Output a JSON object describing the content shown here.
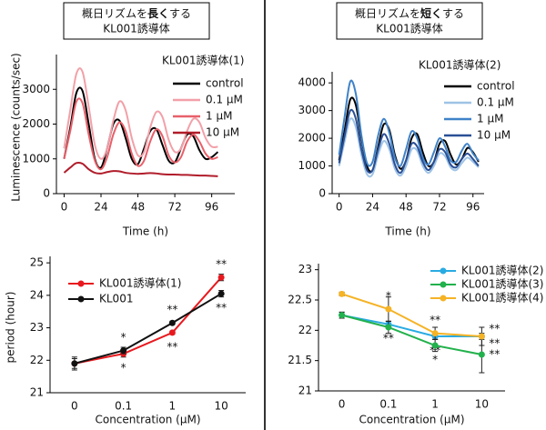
{
  "headers": [
    {
      "line1": [
        "概日リズムを",
        "長く",
        "する"
      ],
      "line2": "KL001誘導体"
    },
    {
      "line1": [
        "概日リズムを",
        "短く",
        "する"
      ],
      "line2": "KL001誘導体"
    }
  ],
  "chart_data": [
    {
      "type": "line",
      "legend_title": "KL001誘導体(1)",
      "xlabel": "Time (h)",
      "ylabel": "Luminescence (counts/sec)",
      "x": [
        0,
        4,
        8,
        12,
        16,
        20,
        24,
        28,
        32,
        36,
        40,
        44,
        48,
        52,
        56,
        60,
        64,
        68,
        72,
        76,
        80,
        84,
        88,
        92,
        96,
        100
      ],
      "xlim": [
        -5,
        111
      ],
      "xticks": [
        0,
        24,
        48,
        72,
        96
      ],
      "ylim": [
        0,
        4000
      ],
      "yticks": [
        0,
        1000,
        2000,
        3000
      ],
      "series": [
        {
          "name": "control",
          "color": "#000000",
          "values": [
            1000,
            1900,
            2900,
            2950,
            2000,
            1000,
            750,
            1300,
            2000,
            2100,
            1600,
            1000,
            850,
            1300,
            1800,
            1850,
            1400,
            950,
            900,
            1300,
            1700,
            1650,
            1250,
            1000,
            1050,
            1200
          ]
        },
        {
          "name": "0.1 μM",
          "color": "#f2a0a8",
          "values": [
            1300,
            2400,
            3450,
            3500,
            2500,
            1400,
            1000,
            1300,
            2100,
            2650,
            2400,
            1600,
            1100,
            1200,
            1900,
            2350,
            2200,
            1550,
            1200,
            1300,
            1800,
            2150,
            2050,
            1600,
            1350,
            1350
          ]
        },
        {
          "name": "1 μM",
          "color": "#e8606a",
          "values": [
            1000,
            1800,
            2650,
            2600,
            1700,
            950,
            700,
            1050,
            1700,
            2050,
            1800,
            1150,
            800,
            950,
            1500,
            1850,
            1650,
            1100,
            900,
            1050,
            1500,
            1700,
            1500,
            1150,
            1000,
            1050
          ]
        },
        {
          "name": "10 μM",
          "color": "#b01c2a",
          "values": [
            600,
            750,
            880,
            860,
            700,
            600,
            580,
            620,
            650,
            640,
            600,
            580,
            570,
            580,
            590,
            580,
            560,
            550,
            550,
            540,
            540,
            530,
            520,
            520,
            510,
            500
          ]
        }
      ]
    },
    {
      "type": "line",
      "legend_title": "KL001誘導体(2)",
      "xlabel": "Time (h)",
      "x": [
        0,
        4,
        8,
        12,
        16,
        20,
        24,
        28,
        32,
        36,
        40,
        44,
        48,
        52,
        56,
        60,
        64,
        68,
        72,
        76,
        80,
        84,
        88,
        92,
        96,
        100
      ],
      "xlim": [
        -5,
        104
      ],
      "xticks": [
        0,
        24,
        48,
        72,
        96
      ],
      "ylim": [
        0,
        4400
      ],
      "yticks": [
        0,
        1000,
        2000,
        3000,
        4000
      ],
      "series": [
        {
          "name": "control",
          "color": "#000000",
          "values": [
            1200,
            2300,
            3400,
            3200,
            2000,
            1000,
            850,
            1700,
            2500,
            2300,
            1400,
            900,
            1200,
            2000,
            2150,
            1500,
            1000,
            1150,
            1800,
            1900,
            1400,
            1050,
            1250,
            1650,
            1500,
            1150
          ]
        },
        {
          "name": "0.1 μM",
          "color": "#9ec3e6",
          "values": [
            1000,
            1900,
            2700,
            2400,
            1400,
            700,
            700,
            1400,
            1900,
            1600,
            900,
            650,
            1000,
            1600,
            1550,
            1000,
            750,
            1000,
            1450,
            1350,
            950,
            850,
            1100,
            1300,
            1150,
            950
          ]
        },
        {
          "name": "1 μM",
          "color": "#3f82c8",
          "values": [
            1400,
            2800,
            4050,
            3600,
            2100,
            1100,
            1150,
            2100,
            2700,
            2200,
            1300,
            1000,
            1600,
            2250,
            2000,
            1300,
            1050,
            1500,
            2000,
            1700,
            1200,
            1150,
            1550,
            1800,
            1450,
            1200
          ]
        },
        {
          "name": "10 μM",
          "color": "#2a4f95",
          "values": [
            1100,
            2100,
            3000,
            2700,
            1600,
            850,
            850,
            1600,
            2150,
            1800,
            1050,
            750,
            1200,
            1800,
            1700,
            1150,
            850,
            1150,
            1600,
            1500,
            1050,
            950,
            1250,
            1450,
            1250,
            1000
          ]
        }
      ]
    },
    {
      "type": "line",
      "xlabel": "Concentration (μM)",
      "ylabel": "period (hour)",
      "categories": [
        "0",
        "0.1",
        "1",
        "10"
      ],
      "ylim": [
        21,
        25.2
      ],
      "yticks": [
        21,
        22,
        23,
        24,
        25
      ],
      "series": [
        {
          "name": "KL001誘導体(1)",
          "color": "#e8191e",
          "values": [
            21.9,
            22.2,
            22.85,
            24.55
          ],
          "errors": [
            0.15,
            0.1,
            0.05,
            0.1
          ],
          "significance": [
            null,
            "*",
            "**",
            "**"
          ]
        },
        {
          "name": "KL001",
          "color": "#111111",
          "values": [
            21.9,
            22.3,
            23.15,
            24.05
          ],
          "errors": [
            0.2,
            0.1,
            0.05,
            0.1
          ],
          "significance": [
            null,
            "*",
            "**",
            "**"
          ]
        }
      ]
    },
    {
      "type": "line",
      "xlabel": "Concentration (μM)",
      "categories": [
        "0",
        "0.1",
        "1",
        "10"
      ],
      "ylim": [
        21,
        23.1
      ],
      "yticks": [
        21,
        21.5,
        22,
        22.5,
        23
      ],
      "series": [
        {
          "name": "KL001誘導体(2)",
          "color": "#29abe2",
          "values": [
            22.25,
            22.1,
            21.9,
            21.9
          ],
          "errors": [
            0.05,
            0.05,
            0.05,
            0.05
          ],
          "significance": [
            null,
            "**",
            "**",
            "**"
          ]
        },
        {
          "name": "KL001誘導体(3)",
          "color": "#22b14c",
          "values": [
            22.25,
            22.05,
            21.75,
            21.6
          ],
          "errors": [
            0.05,
            0.1,
            0.1,
            0.3
          ],
          "significance": [
            null,
            null,
            "*",
            "**"
          ]
        },
        {
          "name": "KL001誘導体(4)",
          "color": "#f5b325",
          "values": [
            22.6,
            22.35,
            21.95,
            21.9
          ],
          "errors": [
            0.03,
            0.2,
            0.1,
            0.15
          ],
          "significance": [
            null,
            "*",
            "**",
            "**"
          ]
        }
      ]
    }
  ]
}
